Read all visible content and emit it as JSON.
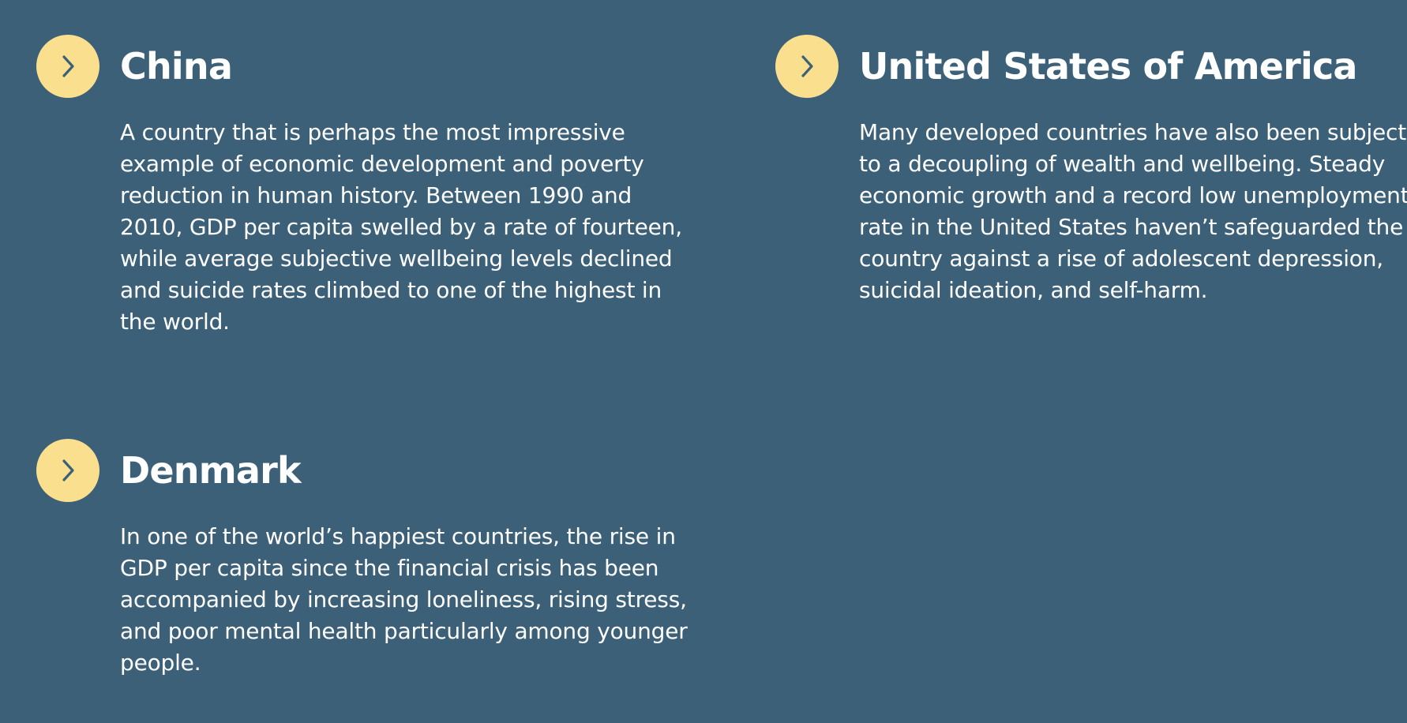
{
  "colors": {
    "background": "#3d6079",
    "accent": "#fae08e",
    "text": "#ffffff",
    "chevron": "#3d6079"
  },
  "countries": [
    {
      "id": "china",
      "icon": "chevron-right-icon",
      "title": "China",
      "body": "A country that is perhaps the most impressive example of economic development and poverty reduction in human history. Between 1990 and 2010, GDP per capita swelled by a rate of fourteen, while average subjective wellbeing levels declined and suicide rates climbed to one of the highest in the world."
    },
    {
      "id": "usa",
      "icon": "chevron-right-icon",
      "title": "United States of America",
      "body": "Many developed countries have also been subject to a decoupling of wealth and wellbeing. Steady economic growth and a record low unemployment rate in the United States haven’t safeguarded the country against a rise of adolescent depression, suicidal ideation, and self-harm."
    },
    {
      "id": "denmark",
      "icon": "chevron-right-icon",
      "title": "Denmark",
      "body": "In one of the world’s happiest countries, the rise in GDP per capita since the financial crisis has been accompanied by increasing loneliness, rising stress, and poor mental health particularly among younger people."
    }
  ]
}
